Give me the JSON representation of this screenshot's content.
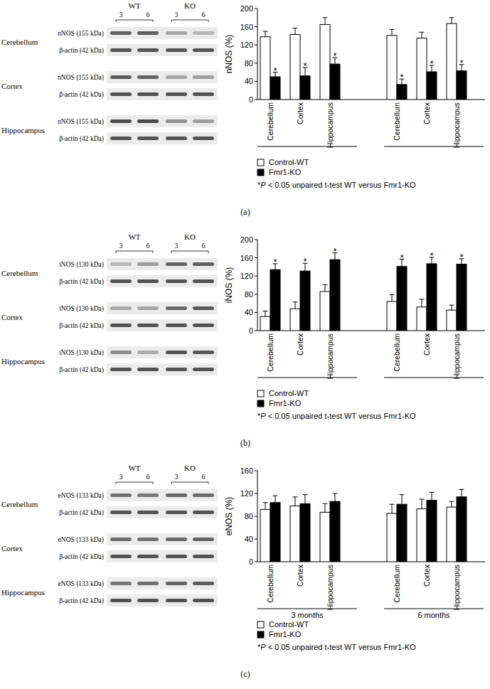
{
  "chart_data": [
    {
      "type": "bar",
      "panel_label": "(a)",
      "y_label": "nNOS (%)",
      "categories": [
        "Cerebellum",
        "Cortex",
        "Hippocampus",
        "Cerebellum",
        "Cortex",
        "Hippocampus"
      ],
      "group_labels": [
        null,
        null
      ],
      "series": [
        {
          "name": "Control-WT",
          "color": "#ffffff",
          "values": [
            138,
            143,
            165,
            141,
            135,
            167
          ],
          "errors": [
            12,
            14,
            15,
            13,
            13,
            13
          ]
        },
        {
          "name": "Fmr1-KO",
          "color": "#000000",
          "values": [
            50,
            52,
            78,
            33,
            61,
            63
          ],
          "errors": [
            10,
            18,
            14,
            12,
            14,
            14
          ],
          "significance": [
            "*",
            "*",
            "*",
            "*",
            "*",
            "*"
          ]
        }
      ],
      "ylim": [
        0,
        200
      ],
      "yticks": [
        0,
        40,
        80,
        120,
        160,
        200
      ],
      "legend": "bottom",
      "note": "*P < 0.05 unpaired t-test WT versus Fmr1-KO",
      "blot": {
        "groups": [
          "WT",
          "KO"
        ],
        "lanes": [
          "3",
          "6",
          "3",
          "6"
        ],
        "rows": [
          {
            "region": "Cerebellum",
            "protein": "nNOS (155 kDa)",
            "loading": "β-actin (42 kDa)"
          },
          {
            "region": "Cortex",
            "protein": "nNOS (155 kDa)",
            "loading": "β-actin (42 kDa)"
          },
          {
            "region": "Hippocampus",
            "protein": "nNOS (155 kDa)",
            "loading": "β-actin (42 kDa)"
          }
        ]
      }
    },
    {
      "type": "bar",
      "panel_label": "(b)",
      "y_label": "iNOS (%)",
      "categories": [
        "Cerebellum",
        "Cortex",
        "Hippocampus",
        "Cerebellum",
        "Cortex",
        "Hippocampus"
      ],
      "group_labels": [
        null,
        null
      ],
      "series": [
        {
          "name": "Control-WT",
          "color": "#ffffff",
          "values": [
            31,
            48,
            86,
            64,
            52,
            45
          ],
          "errors": [
            12,
            15,
            15,
            15,
            17,
            11
          ]
        },
        {
          "name": "Fmr1-KO",
          "color": "#000000",
          "values": [
            134,
            131,
            156,
            141,
            147,
            146
          ],
          "errors": [
            13,
            17,
            15,
            16,
            14,
            12
          ],
          "significance": [
            "*",
            "*",
            "*",
            "*",
            "*",
            "*"
          ]
        }
      ],
      "ylim": [
        0,
        200
      ],
      "yticks": [
        0,
        40,
        80,
        120,
        160,
        200
      ],
      "legend": "bottom",
      "note": "*P < 0.05 unpaired t-test WT versus Fmr1-KO",
      "blot": {
        "groups": [
          "WT",
          "KO"
        ],
        "lanes": [
          "3",
          "6",
          "3",
          "6"
        ],
        "rows": [
          {
            "region": "Cerebellum",
            "protein": "iNOS (130 kDa)",
            "loading": "β-actin (42 kDa)"
          },
          {
            "region": "Cortex",
            "protein": "iNOS (130 kDa)",
            "loading": "β-actin (42 kDa)"
          },
          {
            "region": "Hippocampus",
            "protein": "iNOS (130 kDa)",
            "loading": "β-actin (42 kDa)"
          }
        ]
      }
    },
    {
      "type": "bar",
      "panel_label": "(c)",
      "y_label": "eNOS (%)",
      "categories": [
        "Cerebellum",
        "Cortex",
        "Hippocampus",
        "Cerebellum",
        "Cortex",
        "Hippocampus"
      ],
      "group_labels": [
        "3 months",
        "6 months"
      ],
      "series": [
        {
          "name": "Control-WT",
          "color": "#ffffff",
          "values": [
            92,
            98,
            87,
            85,
            93,
            96
          ],
          "errors": [
            12,
            16,
            15,
            16,
            17,
            10
          ]
        },
        {
          "name": "Fmr1-KO",
          "color": "#000000",
          "values": [
            104,
            102,
            106,
            101,
            108,
            114
          ],
          "errors": [
            12,
            16,
            14,
            17,
            14,
            13
          ]
        }
      ],
      "ylim": [
        0,
        160
      ],
      "yticks": [
        0,
        40,
        80,
        120,
        160
      ],
      "legend": "bottom",
      "note": "*P < 0.05 unpaired t-test WT versus Fmr1-KO",
      "blot": {
        "groups": [
          "WT",
          "KO"
        ],
        "lanes": [
          "3",
          "6",
          "3",
          "6"
        ],
        "rows": [
          {
            "region": "Cerebellum",
            "protein": "eNOS (133 kDa)",
            "loading": "β-actin (42 kDa)"
          },
          {
            "region": "Cortex",
            "protein": "eNOS (133 kDa)",
            "loading": "β-actin (42 kDa)"
          },
          {
            "region": "Hippocampus",
            "protein": "eNOS (133 kDa)",
            "loading": "β-actin (42 kDa)"
          }
        ]
      }
    }
  ]
}
